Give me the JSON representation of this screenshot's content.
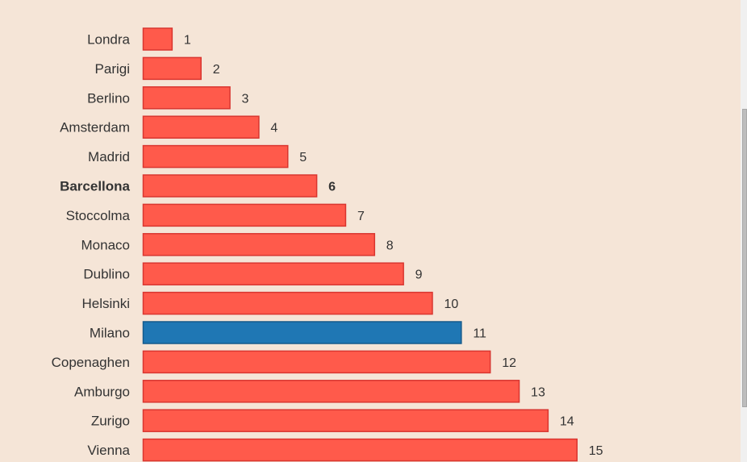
{
  "chart_data": {
    "type": "bar",
    "orientation": "horizontal",
    "title": "",
    "xlabel": "",
    "ylabel": "",
    "categories": [
      "Londra",
      "Parigi",
      "Berlino",
      "Amsterdam",
      "Madrid",
      "Barcellona",
      "Stoccolma",
      "Monaco",
      "Dublino",
      "Helsinki",
      "Milano",
      "Copenaghen",
      "Amburgo",
      "Zurigo",
      "Vienna"
    ],
    "values": [
      1,
      2,
      3,
      4,
      5,
      6,
      7,
      8,
      9,
      10,
      11,
      12,
      13,
      14,
      15
    ],
    "value_labels": [
      "1",
      "2",
      "3",
      "4",
      "5",
      "6",
      "7",
      "8",
      "9",
      "10",
      "11",
      "12",
      "13",
      "14",
      "15"
    ],
    "highlight_category": "Milano",
    "bold_category": "Barcellona",
    "grid": false,
    "legend": "none",
    "colors": {
      "default_bar": "#ff5a4b",
      "default_stroke": "#d93630",
      "highlight_bar": "#1f77b4",
      "highlight_stroke": "#155a8c",
      "background": "#f5e5d7",
      "text": "#333333"
    }
  }
}
